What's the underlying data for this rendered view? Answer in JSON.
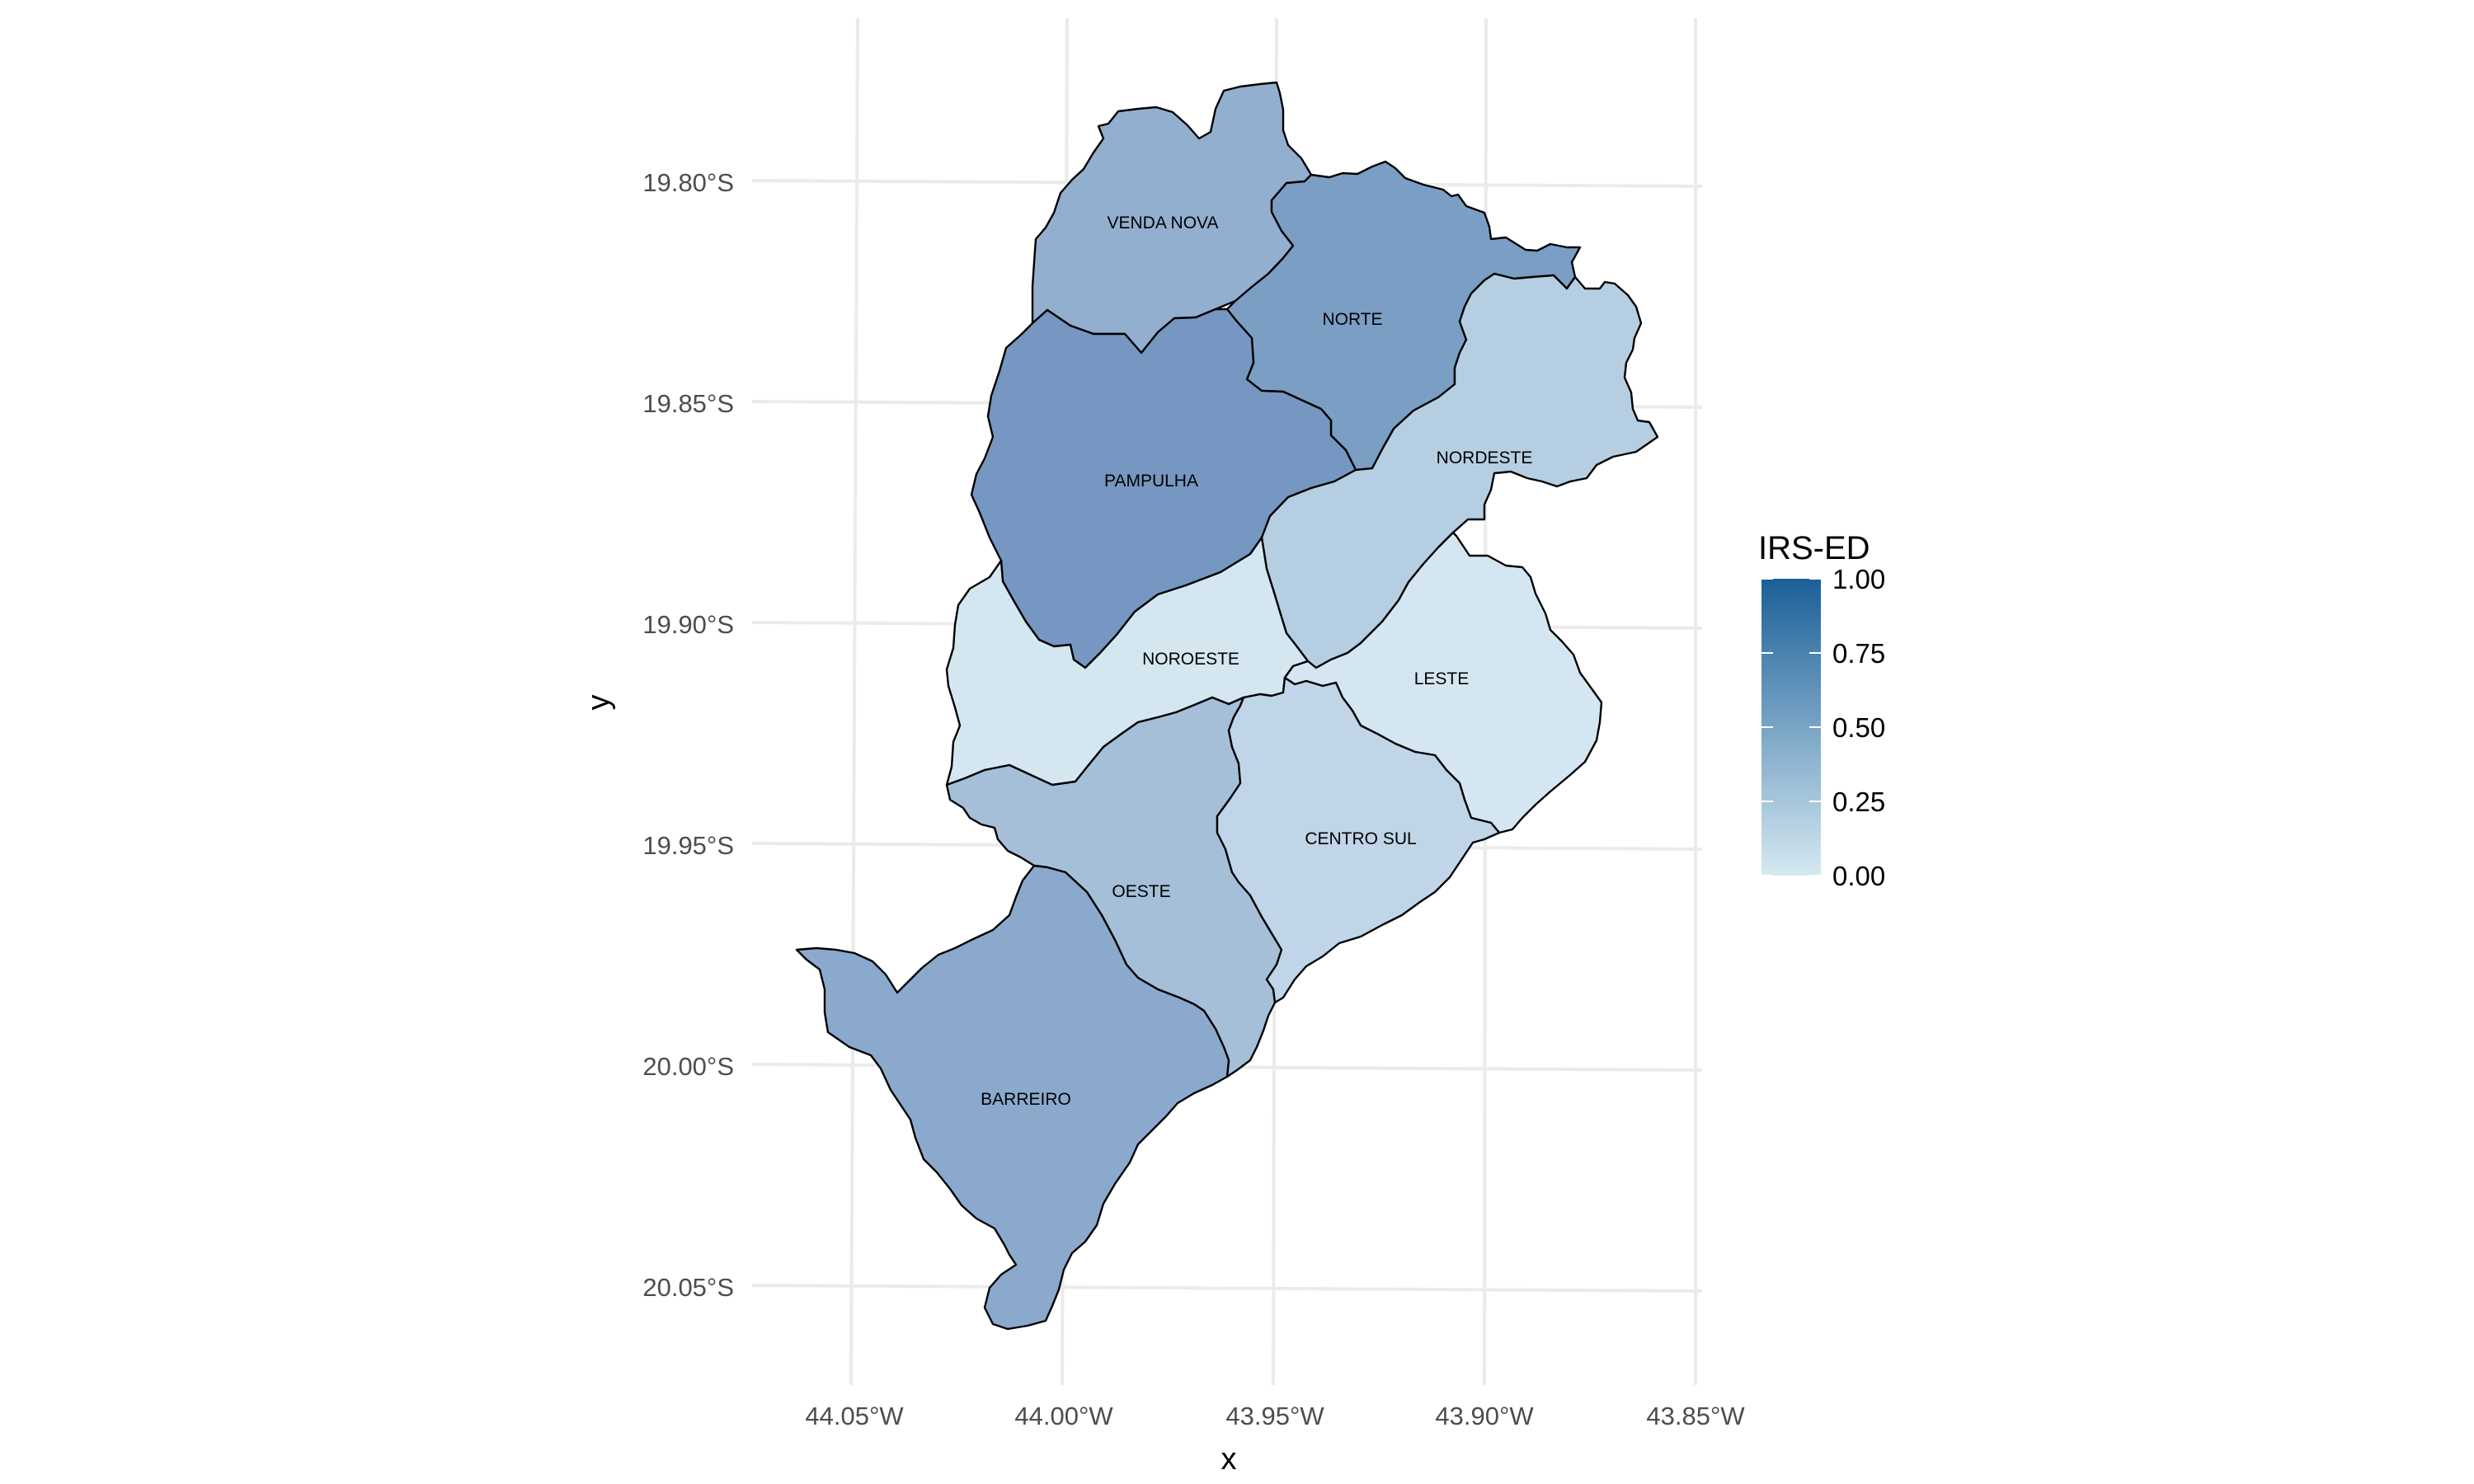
{
  "chart_data": {
    "type": "choropleth",
    "title": "",
    "xlabel": "x",
    "ylabel": "y",
    "x_ticks": [
      "44.05°W",
      "44.00°W",
      "43.95°W",
      "43.90°W",
      "43.85°W"
    ],
    "y_ticks": [
      "19.80°S",
      "19.85°S",
      "19.90°S",
      "19.95°S",
      "20.00°S",
      "20.05°S"
    ],
    "xlim": [
      -44.067,
      -43.847
    ],
    "ylim": [
      -20.07,
      -19.773
    ],
    "grid": true,
    "legend": {
      "title": "IRS-ED",
      "position": "right",
      "ticks": [
        "1.00",
        "0.75",
        "0.50",
        "0.25",
        "0.00"
      ],
      "scale": [
        0,
        1
      ],
      "color_low": "#d6e9f2",
      "color_high": "#1b5f98"
    },
    "regions": [
      {
        "name": "VENDA NOVA",
        "value": 0.45,
        "color": "#93afcf"
      },
      {
        "name": "NORTE",
        "value": 0.62,
        "color": "#7b9ec5"
      },
      {
        "name": "PAMPULHA",
        "value": 0.65,
        "color": "#7597c1"
      },
      {
        "name": "NORDESTE",
        "value": 0.25,
        "color": "#b6cee2"
      },
      {
        "name": "NOROESTE",
        "value": 0.04,
        "color": "#d4e7f1"
      },
      {
        "name": "LESTE",
        "value": 0.05,
        "color": "#d4e6f1"
      },
      {
        "name": "OESTE",
        "value": 0.35,
        "color": "#a5bfd9"
      },
      {
        "name": "CENTRO SUL",
        "value": 0.2,
        "color": "#c0d5e7"
      },
      {
        "name": "BARREIRO",
        "value": 0.5,
        "color": "#8aa9cd"
      }
    ]
  }
}
